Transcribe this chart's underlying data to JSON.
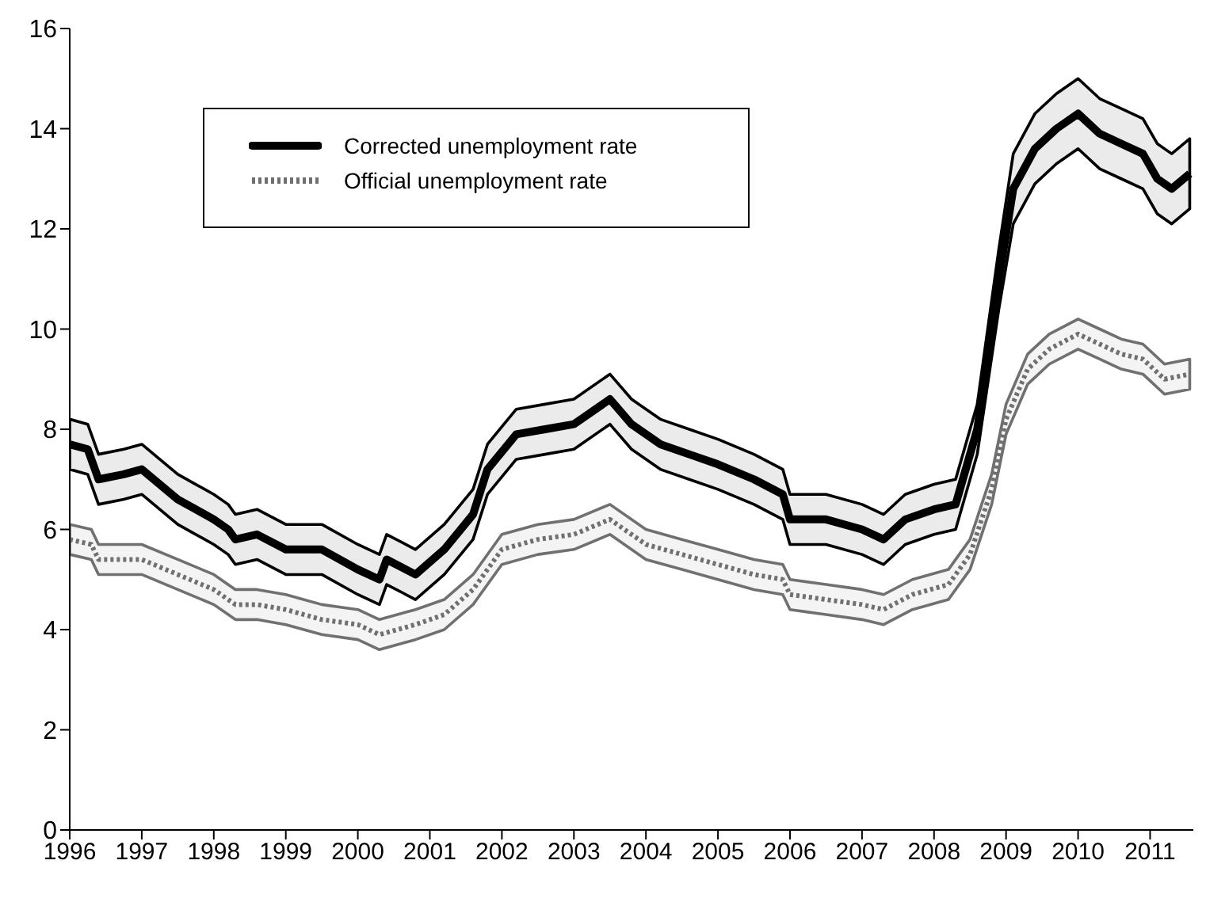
{
  "chart_data": {
    "type": "line",
    "xlim": [
      1996,
      2011.6
    ],
    "xticks": [
      1996,
      1997,
      1998,
      1999,
      2000,
      2001,
      2002,
      2003,
      2004,
      2005,
      2006,
      2007,
      2008,
      2009,
      2010,
      2011
    ],
    "ylim": [
      0,
      16
    ],
    "yticks": [
      0,
      2,
      4,
      6,
      8,
      10,
      12,
      14,
      16
    ],
    "grid": false,
    "legend": "top left",
    "marker": "none",
    "series": [
      {
        "name": "Corrected unemployment rate",
        "color": "#000000",
        "line_style": "solid",
        "x": [
          1996.0,
          1996.25,
          1996.4,
          1996.75,
          1997.0,
          1997.25,
          1997.5,
          1997.75,
          1998.0,
          1998.2,
          1998.3,
          1998.6,
          1999.0,
          1999.5,
          2000.0,
          2000.3,
          2000.4,
          2000.8,
          2001.2,
          2001.6,
          2001.8,
          2002.2,
          2002.6,
          2003.0,
          2003.5,
          2003.8,
          2004.2,
          2004.6,
          2005.0,
          2005.5,
          2005.9,
          2006.0,
          2006.5,
          2007.0,
          2007.3,
          2007.6,
          2008.0,
          2008.3,
          2008.6,
          2008.9,
          2009.1,
          2009.4,
          2009.7,
          2010.0,
          2010.3,
          2010.6,
          2010.9,
          2011.1,
          2011.3,
          2011.55
        ],
        "values": [
          7.7,
          7.6,
          7.0,
          7.1,
          7.2,
          6.9,
          6.6,
          6.4,
          6.2,
          6.0,
          5.8,
          5.9,
          5.6,
          5.6,
          5.2,
          5.0,
          5.4,
          5.1,
          5.6,
          6.3,
          7.2,
          7.9,
          8.0,
          8.1,
          8.6,
          8.1,
          7.7,
          7.5,
          7.3,
          7.0,
          6.7,
          6.2,
          6.2,
          6.0,
          5.8,
          6.2,
          6.4,
          6.5,
          8.0,
          11.0,
          12.8,
          13.6,
          14.0,
          14.3,
          13.9,
          13.7,
          13.5,
          13.0,
          12.8,
          13.1
        ],
        "lower": [
          7.2,
          7.1,
          6.5,
          6.6,
          6.7,
          6.4,
          6.1,
          5.9,
          5.7,
          5.5,
          5.3,
          5.4,
          5.1,
          5.1,
          4.7,
          4.5,
          4.9,
          4.6,
          5.1,
          5.8,
          6.7,
          7.4,
          7.5,
          7.6,
          8.1,
          7.6,
          7.2,
          7.0,
          6.8,
          6.5,
          6.2,
          5.7,
          5.7,
          5.5,
          5.3,
          5.7,
          5.9,
          6.0,
          7.5,
          10.4,
          12.1,
          12.9,
          13.3,
          13.6,
          13.2,
          13.0,
          12.8,
          12.3,
          12.1,
          12.4
        ],
        "upper": [
          8.2,
          8.1,
          7.5,
          7.6,
          7.7,
          7.4,
          7.1,
          6.9,
          6.7,
          6.5,
          6.3,
          6.4,
          6.1,
          6.1,
          5.7,
          5.5,
          5.9,
          5.6,
          6.1,
          6.8,
          7.7,
          8.4,
          8.5,
          8.6,
          9.1,
          8.6,
          8.2,
          8.0,
          7.8,
          7.5,
          7.2,
          6.7,
          6.7,
          6.5,
          6.3,
          6.7,
          6.9,
          7.0,
          8.5,
          11.6,
          13.5,
          14.3,
          14.7,
          15.0,
          14.6,
          14.4,
          14.2,
          13.7,
          13.5,
          13.8
        ]
      },
      {
        "name": "Official unemployment rate",
        "color": "#707070",
        "line_style": "dotted",
        "x": [
          1996.0,
          1996.3,
          1996.4,
          1997.0,
          1997.5,
          1998.0,
          1998.3,
          1998.6,
          1999.0,
          1999.5,
          2000.0,
          2000.3,
          2000.8,
          2001.2,
          2001.6,
          2002.0,
          2002.5,
          2003.0,
          2003.5,
          2004.0,
          2004.5,
          2005.0,
          2005.5,
          2005.9,
          2006.0,
          2006.5,
          2007.0,
          2007.3,
          2007.7,
          2008.2,
          2008.5,
          2008.8,
          2009.0,
          2009.3,
          2009.6,
          2010.0,
          2010.3,
          2010.6,
          2010.9,
          2011.2,
          2011.55
        ],
        "values": [
          5.8,
          5.7,
          5.4,
          5.4,
          5.1,
          4.8,
          4.5,
          4.5,
          4.4,
          4.2,
          4.1,
          3.9,
          4.1,
          4.3,
          4.8,
          5.6,
          5.8,
          5.9,
          6.2,
          5.7,
          5.5,
          5.3,
          5.1,
          5.0,
          4.7,
          4.6,
          4.5,
          4.4,
          4.7,
          4.9,
          5.5,
          6.8,
          8.2,
          9.2,
          9.6,
          9.9,
          9.7,
          9.5,
          9.4,
          9.0,
          9.1
        ],
        "lower": [
          5.5,
          5.4,
          5.1,
          5.1,
          4.8,
          4.5,
          4.2,
          4.2,
          4.1,
          3.9,
          3.8,
          3.6,
          3.8,
          4.0,
          4.5,
          5.3,
          5.5,
          5.6,
          5.9,
          5.4,
          5.2,
          5.0,
          4.8,
          4.7,
          4.4,
          4.3,
          4.2,
          4.1,
          4.4,
          4.6,
          5.2,
          6.5,
          7.9,
          8.9,
          9.3,
          9.6,
          9.4,
          9.2,
          9.1,
          8.7,
          8.8
        ],
        "upper": [
          6.1,
          6.0,
          5.7,
          5.7,
          5.4,
          5.1,
          4.8,
          4.8,
          4.7,
          4.5,
          4.4,
          4.2,
          4.4,
          4.6,
          5.1,
          5.9,
          6.1,
          6.2,
          6.5,
          6.0,
          5.8,
          5.6,
          5.4,
          5.3,
          5.0,
          4.9,
          4.8,
          4.7,
          5.0,
          5.2,
          5.8,
          7.1,
          8.5,
          9.5,
          9.9,
          10.2,
          10.0,
          9.8,
          9.7,
          9.3,
          9.4
        ]
      }
    ]
  }
}
